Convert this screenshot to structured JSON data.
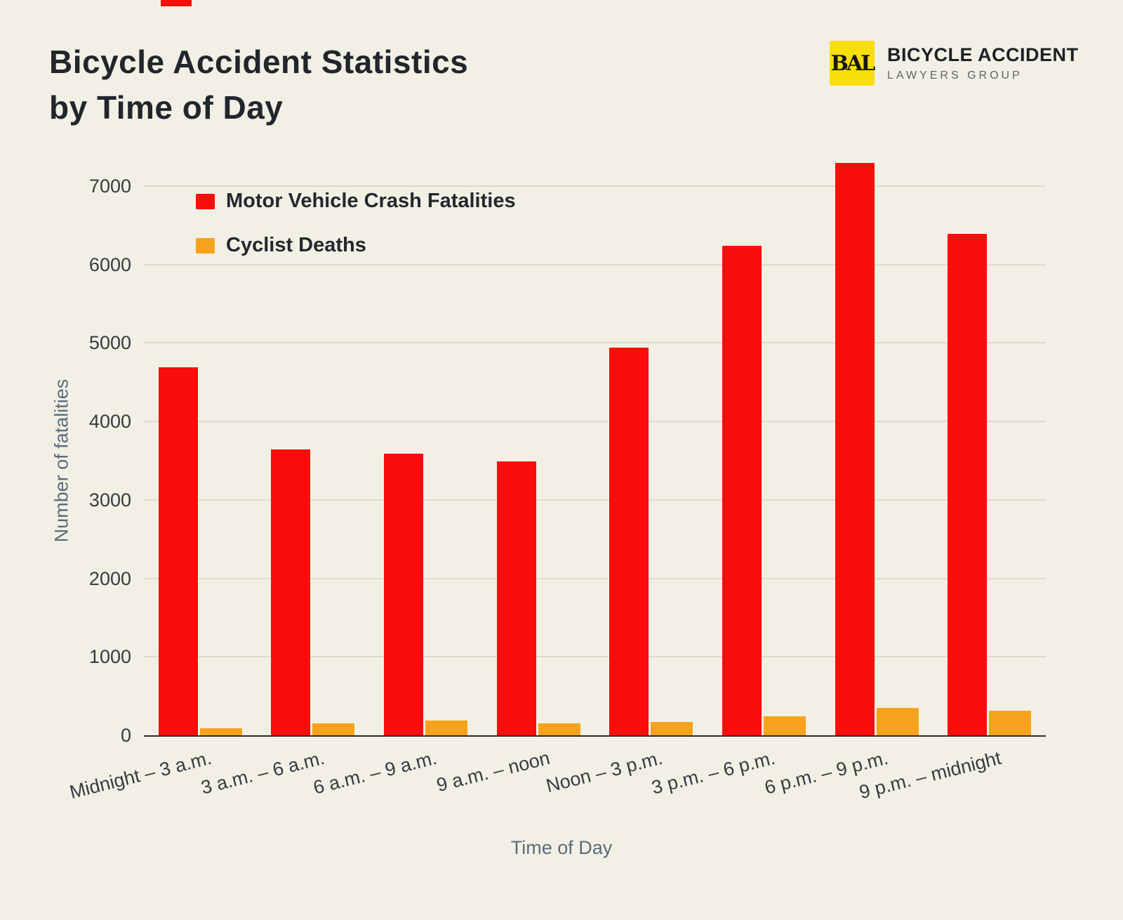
{
  "header": {
    "title_line1": "Bicycle Accident Statistics",
    "title_line2": "by Time of Day"
  },
  "logo": {
    "monogram": "BAL",
    "name": "BICYCLE ACCIDENT",
    "subtitle": "LAWYERS GROUP",
    "badge_color": "#f8df05"
  },
  "chart_data": {
    "type": "bar",
    "title": "Bicycle Accident Statistics by Time of Day",
    "xlabel": "Time of Day",
    "ylabel": "Number of fatalities",
    "ylim": [
      0,
      7500
    ],
    "yticks": [
      0,
      1000,
      2000,
      3000,
      4000,
      5000,
      6000,
      7000
    ],
    "grid": true,
    "legend_position": "top-left",
    "categories": [
      "Midnight – 3 a.m.",
      "3 a.m. – 6 a.m.",
      "6 a.m. – 9 a.m.",
      "9 a.m. – noon",
      "Noon – 3 p.m.",
      "3 p.m. – 6 p.m.",
      "6 p.m. – 9 p.m.",
      "9 p.m. – midnight"
    ],
    "series": [
      {
        "name": "Motor Vehicle Crash Fatalities",
        "color": "#f90d0d",
        "values": [
          4700,
          3650,
          3600,
          3500,
          4950,
          6250,
          7300,
          6400
        ]
      },
      {
        "name": "Cyclist Deaths",
        "color": "#f6a21c",
        "values": [
          100,
          160,
          200,
          160,
          180,
          250,
          360,
          320
        ]
      }
    ],
    "colors": {
      "background": "#f2f0e4",
      "gridline": "#dddbcd",
      "axis_line": "#2a2a2a",
      "tick_label": "#363b42",
      "axis_title": "#5a6b7d"
    }
  }
}
